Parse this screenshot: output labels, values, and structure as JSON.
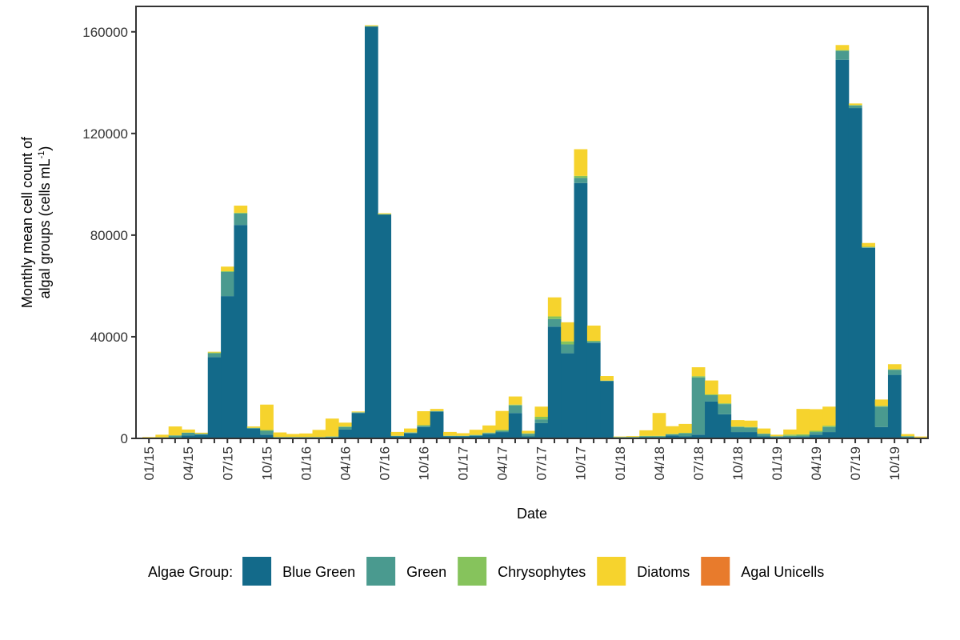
{
  "chart_data": {
    "type": "bar",
    "stacked": true,
    "xlabel": "Date",
    "ylabel_line1": "Monthly mean cell count of",
    "ylabel_line2": "algal groups (cells mL",
    "ylabel_sup": "-1",
    "ylabel_close": ")",
    "ylim": [
      0,
      170000
    ],
    "yticks": [
      0,
      40000,
      80000,
      120000,
      160000
    ],
    "ytick_labels": [
      "0",
      "40000",
      "80000",
      "120000",
      "160000"
    ],
    "grid": false,
    "legend_position": "bottom",
    "legend_title": "Algae Group:",
    "x_labels": [
      "01/15",
      "04/15",
      "07/15",
      "10/15",
      "01/16",
      "04/16",
      "07/16",
      "10/16",
      "01/17",
      "04/17",
      "07/17",
      "10/17",
      "01/18",
      "04/18",
      "07/18",
      "10/18",
      "01/19",
      "04/19",
      "07/19",
      "10/19"
    ],
    "categories": [
      "01/15",
      "02/15",
      "03/15",
      "04/15",
      "05/15",
      "06/15",
      "07/15",
      "08/15",
      "09/15",
      "10/15",
      "11/15",
      "12/15",
      "01/16",
      "02/16",
      "03/16",
      "04/16",
      "05/16",
      "06/16",
      "07/16",
      "08/16",
      "09/16",
      "10/16",
      "11/16",
      "12/16",
      "01/17",
      "02/17",
      "03/17",
      "04/17",
      "05/17",
      "06/17",
      "07/17",
      "08/17",
      "09/17",
      "10/17",
      "11/17",
      "12/17",
      "01/18",
      "02/18",
      "03/18",
      "04/18",
      "05/18",
      "06/18",
      "07/18",
      "08/18",
      "09/18",
      "10/18",
      "11/18",
      "12/18",
      "01/19",
      "02/19",
      "03/19",
      "04/19",
      "05/19",
      "06/19",
      "07/19",
      "08/19",
      "09/19",
      "10/19",
      "11/19",
      "12/19"
    ],
    "series": [
      {
        "name": "Blue Green",
        "color": "#136a8a",
        "values": [
          200,
          200,
          300,
          1200,
          1500,
          32000,
          56000,
          84000,
          3800,
          1500,
          300,
          300,
          300,
          300,
          400,
          3500,
          10000,
          162000,
          88000,
          800,
          2000,
          4500,
          10500,
          800,
          800,
          1000,
          1800,
          2500,
          10000,
          800,
          6000,
          44000,
          33500,
          100500,
          37500,
          22500,
          300,
          300,
          500,
          500,
          1200,
          800,
          1500,
          14500,
          9500,
          2500,
          2500,
          800,
          500,
          500,
          600,
          1500,
          2500,
          149000,
          130000,
          75000,
          4500,
          25000,
          500,
          100
        ]
      },
      {
        "name": "Green",
        "color": "#4a9a8f",
        "values": [
          100,
          200,
          800,
          1000,
          300,
          1500,
          9500,
          4500,
          300,
          1500,
          200,
          200,
          200,
          200,
          300,
          1000,
          200,
          200,
          200,
          200,
          300,
          500,
          200,
          200,
          200,
          300,
          300,
          500,
          3000,
          1000,
          1500,
          3000,
          3500,
          2000,
          600,
          200,
          200,
          200,
          300,
          300,
          400,
          1200,
          22500,
          2500,
          4000,
          2000,
          1800,
          1000,
          300,
          500,
          500,
          1000,
          2000,
          3500,
          1000,
          200,
          8000,
          2000,
          300,
          200
        ]
      },
      {
        "name": "Chrysophytes",
        "color": "#86c35c",
        "values": [
          50,
          50,
          100,
          100,
          50,
          300,
          300,
          300,
          100,
          300,
          50,
          50,
          50,
          50,
          100,
          200,
          100,
          100,
          100,
          50,
          100,
          200,
          100,
          50,
          50,
          100,
          200,
          300,
          300,
          200,
          1000,
          1000,
          1200,
          800,
          300,
          50,
          50,
          100,
          200,
          200,
          200,
          200,
          500,
          300,
          300,
          200,
          200,
          100,
          50,
          500,
          500,
          500,
          500,
          300,
          200,
          200,
          300,
          200,
          100,
          50
        ]
      },
      {
        "name": "Diatoms",
        "color": "#f6d32d",
        "values": [
          200,
          1000,
          3500,
          1200,
          400,
          300,
          1800,
          2800,
          500,
          10000,
          1800,
          1200,
          1400,
          2800,
          7000,
          1500,
          300,
          300,
          300,
          1500,
          1500,
          5500,
          800,
          1500,
          1000,
          2000,
          2800,
          7500,
          3200,
          1000,
          4000,
          7500,
          7500,
          10500,
          6000,
          1800,
          200,
          300,
          2200,
          9000,
          3000,
          3500,
          3500,
          5500,
          3500,
          2500,
          2500,
          2000,
          600,
          2000,
          10000,
          8500,
          7500,
          2000,
          600,
          1500,
          2500,
          2000,
          800,
          400
        ]
      },
      {
        "name": "Agal Unicells",
        "color": "#e87b2c",
        "values": [
          0,
          0,
          0,
          0,
          0,
          0,
          0,
          0,
          0,
          0,
          0,
          0,
          0,
          0,
          0,
          0,
          0,
          0,
          0,
          0,
          0,
          0,
          0,
          0,
          0,
          0,
          0,
          0,
          0,
          0,
          0,
          0,
          0,
          0,
          0,
          0,
          0,
          0,
          0,
          0,
          0,
          0,
          0,
          0,
          0,
          0,
          0,
          0,
          0,
          0,
          0,
          0,
          0,
          0,
          0,
          0,
          0,
          0,
          0,
          0
        ]
      }
    ]
  }
}
